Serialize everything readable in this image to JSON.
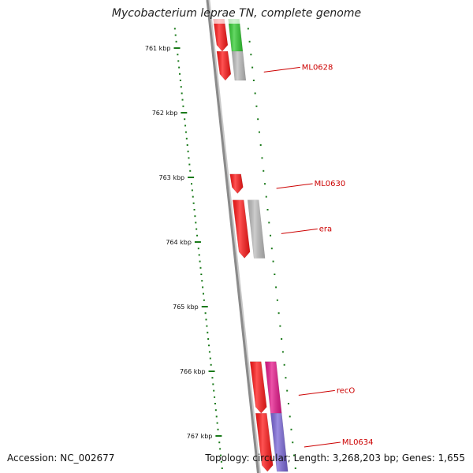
{
  "title": "Mycobacterium leprae TN, complete genome",
  "accession_text": "Accession: NC_002677",
  "summary_text": "Topology: circular; Length: 3,268,203 bp; Genes: 1,655",
  "colors": {
    "backbone": "#8a8a8a",
    "tick": "#1a7a1a",
    "gene_label": "#cc0000",
    "forward_cds": "#ff1a1a",
    "rna": "#bdbdbd",
    "cog_green": "#33cc33",
    "cog_magenta": "#e6198c",
    "cog_purple": "#7b68d8"
  },
  "scale_labels": [
    {
      "label": "761 kbp",
      "kbp": 761
    },
    {
      "label": "762 kbp",
      "kbp": 762
    },
    {
      "label": "763 kbp",
      "kbp": 763
    },
    {
      "label": "764 kbp",
      "kbp": 764
    },
    {
      "label": "765 kbp",
      "kbp": 765
    },
    {
      "label": "766 kbp",
      "kbp": 766
    },
    {
      "label": "767 kbp",
      "kbp": 767
    }
  ],
  "gene_labels": [
    {
      "name": "ML0628",
      "kbp": 761.2
    },
    {
      "name": "ML0630",
      "kbp": 763.0
    },
    {
      "name": "era",
      "kbp": 763.7
    },
    {
      "name": "recO",
      "kbp": 766.2
    },
    {
      "name": "ML0634",
      "kbp": 767.0
    }
  ],
  "features": [
    {
      "track": 1,
      "start_kbp": 760.55,
      "end_kbp": 761.05,
      "color": "#ff1a1a"
    },
    {
      "track": 2,
      "start_kbp": 760.55,
      "end_kbp": 761.05,
      "color": "#33cc33"
    },
    {
      "track": 1,
      "start_kbp": 761.05,
      "end_kbp": 761.5,
      "color": "#ff1a1a"
    },
    {
      "track": 2,
      "start_kbp": 761.05,
      "end_kbp": 761.5,
      "color": "#bdbdbd"
    },
    {
      "track": 1,
      "start_kbp": 762.95,
      "end_kbp": 763.25,
      "color": "#ff1a1a"
    },
    {
      "track": 1,
      "start_kbp": 763.35,
      "end_kbp": 764.25,
      "color": "#ff1a1a"
    },
    {
      "track": 2,
      "start_kbp": 763.35,
      "end_kbp": 764.25,
      "color": "#bdbdbd"
    },
    {
      "track": 1,
      "start_kbp": 765.85,
      "end_kbp": 766.65,
      "color": "#ff1a1a"
    },
    {
      "track": 2,
      "start_kbp": 765.85,
      "end_kbp": 766.65,
      "color": "#e6198c"
    },
    {
      "track": 1,
      "start_kbp": 766.65,
      "end_kbp": 767.55,
      "color": "#ff1a1a"
    },
    {
      "track": 2,
      "start_kbp": 766.65,
      "end_kbp": 767.55,
      "color": "#7b68d8"
    }
  ]
}
